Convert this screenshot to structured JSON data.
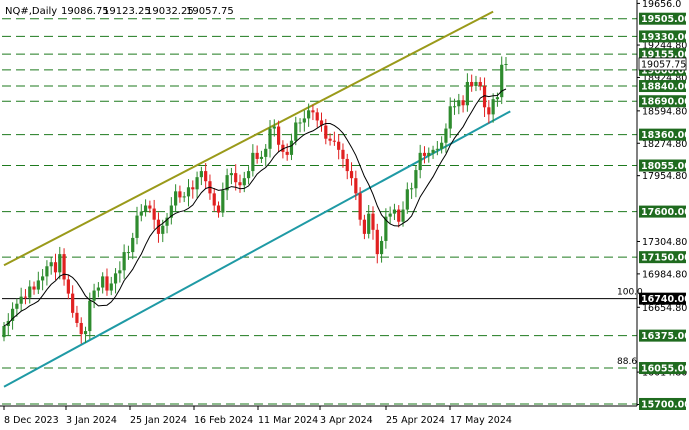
{
  "window": {
    "symbol": "NQ#,Daily",
    "ohlc": [
      "19086.75",
      "19123.25",
      "19032.25",
      "19057.75"
    ]
  },
  "chart_data": {
    "type": "candlestick",
    "title": "NQ#,Daily 19086.75 19123.25 19032.25 19057.75",
    "ylim": [
      15680,
      19660
    ],
    "y_ticks": [
      {
        "value": 19656.0,
        "label": "19656.0"
      },
      {
        "value": 19244.8,
        "label": "19244.80"
      },
      {
        "value": 18924.8,
        "label": "18924.80"
      },
      {
        "value": 18594.8,
        "label": "18594.80"
      },
      {
        "value": 18274.8,
        "label": "18274.80"
      },
      {
        "value": 17954.8,
        "label": "17954.80"
      },
      {
        "value": 17304.8,
        "label": "17304.80"
      },
      {
        "value": 16984.8,
        "label": "16984.80"
      },
      {
        "value": 16654.8,
        "label": "16654.80"
      },
      {
        "value": 16014.8,
        "label": "16014.80"
      },
      {
        "value": 15694.8,
        "label": "15694.80"
      }
    ],
    "x_ticks": [
      "8 Dec 2023",
      "3 Jan 2024",
      "25 Jan 2024",
      "16 Feb 2024",
      "11 Mar 2024",
      "3 Apr 2024",
      "25 Apr 2024",
      "17 May 2024"
    ],
    "levels": [
      {
        "value": 19505.0,
        "label": "19505.00",
        "style": "dashed"
      },
      {
        "value": 19330.0,
        "label": "19330.00",
        "style": "dashed"
      },
      {
        "value": 19155.0,
        "label": "19155.00",
        "style": "dashed"
      },
      {
        "value": 19000.0,
        "label": "19000.00",
        "style": "dashed"
      },
      {
        "value": 18840.0,
        "label": "18840.00",
        "style": "dashed"
      },
      {
        "value": 18690.0,
        "label": "18690.00",
        "style": "dashed"
      },
      {
        "value": 18360.0,
        "label": "18360.00",
        "style": "dashed"
      },
      {
        "value": 18055.0,
        "label": "18055.00",
        "style": "dashed"
      },
      {
        "value": 17600.0,
        "label": "17600.00",
        "style": "dashed"
      },
      {
        "value": 17150.0,
        "label": "17150.00",
        "style": "dashed"
      },
      {
        "value": 16740.0,
        "label": "16740.00",
        "style": "solid"
      },
      {
        "value": 16375.0,
        "label": "16375.00",
        "style": "dashed"
      },
      {
        "value": 16055.0,
        "label": "16055.00",
        "style": "dashed"
      },
      {
        "value": 15700.0,
        "label": "15700.00",
        "style": "dashed"
      }
    ],
    "fibo_labels": [
      {
        "label": "100.0",
        "value": 16740.0
      },
      {
        "label": "88.6",
        "value": 16055.0
      }
    ],
    "current_price": {
      "value": 19057.75,
      "label": "19057.75"
    },
    "trendlines": [
      {
        "color": "#9a9a1a",
        "from": {
          "bar": 0,
          "price": 17070
        },
        "to": {
          "bar": 114,
          "price": 19575
        }
      },
      {
        "color": "#1f9aa5",
        "from": {
          "bar": 0,
          "price": 15870
        },
        "to": {
          "bar": 118,
          "price": 18590
        }
      }
    ],
    "colors": {
      "up": "#2e8b2e",
      "down": "#e02020",
      "ma": "#000000",
      "box": "#1f6b1f",
      "dashed_level": "#1e7a1e"
    },
    "bar_data_start": [
      16360,
      16470,
      16520,
      16640,
      16690,
      16760,
      16750,
      16860,
      16830,
      16920,
      16960,
      17060,
      17100,
      17000,
      17180,
      16930,
      16790,
      16600,
      16500,
      16390,
      16420,
      16720,
      16820,
      16850,
      16960,
      16820,
      16890,
      16990,
      17020,
      17200,
      17200,
      17340,
      17560,
      17600,
      17660,
      17630,
      17520,
      17380,
      17460,
      17540,
      17660,
      17800,
      17740,
      17750,
      17840,
      17820,
      17940,
      18000,
      17900,
      17780,
      17660,
      17590,
      17810,
      17960,
      17980,
      17890,
      17860,
      17930,
      18000,
      18180,
      18120,
      18140,
      18220,
      18420,
      18440,
      18260,
      18190,
      18160,
      18300,
      18480,
      18480,
      18520,
      18600,
      18580,
      18500,
      18450,
      18320,
      18300,
      18290,
      18210,
      18120,
      18000,
      17930,
      17780,
      17520,
      17380,
      17580,
      17420,
      17180,
      17310,
      17550,
      17580,
      17620,
      17500,
      17620,
      17820,
      17830,
      18010,
      18180,
      18150,
      18180,
      18210,
      18220,
      18280,
      18420,
      18640,
      18640,
      18700,
      18650,
      18880,
      18840,
      18880,
      18840,
      18630,
      18560,
      18710,
      18730,
      19050
    ],
    "bar_data_end": [
      16470,
      16520,
      16640,
      16690,
      16760,
      16750,
      16860,
      16830,
      16920,
      16960,
      17060,
      17100,
      17000,
      17180,
      16930,
      16790,
      16600,
      16500,
      16390,
      16420,
      16720,
      16820,
      16850,
      16960,
      16820,
      16890,
      16990,
      17020,
      17200,
      17200,
      17340,
      17560,
      17600,
      17660,
      17630,
      17520,
      17380,
      17460,
      17540,
      17660,
      17800,
      17740,
      17750,
      17840,
      17820,
      17940,
      18000,
      17900,
      17780,
      17660,
      17590,
      17810,
      17960,
      17980,
      17890,
      17860,
      17930,
      18000,
      18180,
      18120,
      18140,
      18220,
      18420,
      18440,
      18260,
      18190,
      18160,
      18300,
      18480,
      18480,
      18520,
      18600,
      18580,
      18500,
      18450,
      18320,
      18300,
      18290,
      18210,
      18120,
      18000,
      17930,
      17780,
      17520,
      17380,
      17580,
      17420,
      17180,
      17310,
      17550,
      17580,
      17620,
      17500,
      17620,
      17820,
      17830,
      18010,
      18180,
      18150,
      18180,
      18210,
      18220,
      18280,
      18420,
      18640,
      18640,
      18700,
      18650,
      18880,
      18840,
      18880,
      18840,
      18630,
      18560,
      18710,
      18730,
      19050,
      19057.75
    ]
  }
}
